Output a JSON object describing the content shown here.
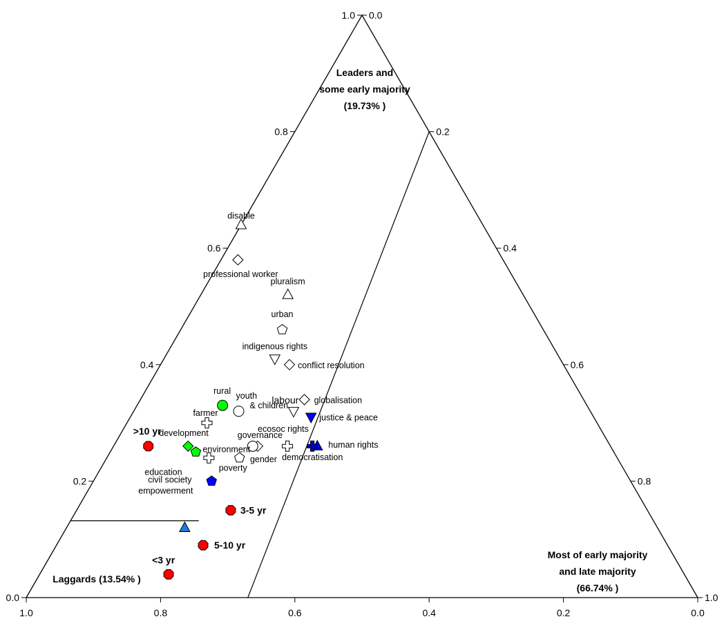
{
  "chart_data": {
    "type": "scatter",
    "subtype": "ternary",
    "grid": false,
    "axes": {
      "bottom_ticks": [
        "1.0",
        "0.8",
        "0.6",
        "0.4",
        "0.2",
        "0.0"
      ],
      "left_ticks": [
        "0.0",
        "0.2",
        "0.4",
        "0.6",
        "0.8",
        "1.0"
      ],
      "right_ticks": [
        "0.0",
        "0.2",
        "0.4",
        "0.6",
        "0.8",
        "1.0"
      ]
    },
    "regions": [
      {
        "name": "leaders",
        "lines": [
          "Leaders and",
          "some early majority",
          "(19.73% )"
        ]
      },
      {
        "name": "laggards",
        "lines": [
          "Laggards (13.54% )"
        ]
      },
      {
        "name": "majority",
        "lines": [
          "Most of early majority",
          "and late majority",
          "(66.74% )"
        ]
      }
    ],
    "points": [
      {
        "label": "disable",
        "a": 0.64,
        "b": 0.0,
        "marker": "triangle-up",
        "color": "#ffffff"
      },
      {
        "label": "professional worker",
        "a": 0.58,
        "b": 0.06,
        "marker": "diamond",
        "color": "#ffffff"
      },
      {
        "label": "pluralism",
        "a": 0.52,
        "b": 0.27,
        "marker": "triangle-up",
        "color": "#ffffff"
      },
      {
        "label": "urban",
        "a": 0.46,
        "b": 0.28,
        "marker": "pentagon",
        "color": "#ffffff"
      },
      {
        "label": "indigenous rights",
        "a": 0.41,
        "b": 0.28,
        "marker": "triangle-down",
        "color": "#ffffff"
      },
      {
        "label": "conflict resolution",
        "a": 0.4,
        "b": 0.32,
        "marker": "diamond",
        "color": "#ffffff"
      },
      {
        "label": "labour",
        "a": 0.32,
        "b": 0.35,
        "marker": "triangle-down",
        "color": "#ffffff"
      },
      {
        "label": "globalisation",
        "a": 0.34,
        "b": 0.37,
        "marker": "diamond",
        "color": "#ffffff"
      },
      {
        "label": "justice & peace",
        "a": 0.31,
        "b": 0.39,
        "marker": "triangle-down",
        "color": "#0000ff"
      },
      {
        "label": "human rights",
        "a": 0.26,
        "b": 0.41,
        "marker": "triangle-up",
        "color": "#0000ff"
      },
      {
        "label": "democratisation",
        "a": 0.26,
        "b": 0.4,
        "marker": "cross",
        "color": "#0000c0"
      },
      {
        "label": "ecosoc rights",
        "a": 0.26,
        "b": 0.35,
        "marker": "cross",
        "color": "#ffffff"
      },
      {
        "label": "gender",
        "a": 0.26,
        "b": 0.29,
        "marker": "diamond",
        "color": "#ffffff"
      },
      {
        "label": "governance",
        "a": 0.26,
        "b": 0.28,
        "marker": "circle",
        "color": "#ffffff"
      },
      {
        "label": "poverty",
        "a": 0.24,
        "b": 0.26,
        "marker": "pentagon",
        "color": "#ffffff"
      },
      {
        "label": "youth & children",
        "a": 0.32,
        "b": 0.23,
        "marker": "circle",
        "color": "#ffffff"
      },
      {
        "label": "rural",
        "a": 0.33,
        "b": 0.19,
        "marker": "circle",
        "color": "#00ff00"
      },
      {
        "label": "farmer",
        "a": 0.3,
        "b": 0.17,
        "marker": "cross",
        "color": "#ffffff"
      },
      {
        "label": "development",
        "a": 0.26,
        "b": 0.15,
        "marker": "diamond",
        "color": "#00ff00"
      },
      {
        "label": "environment",
        "a": 0.25,
        "b": 0.17,
        "marker": "pentagon",
        "color": "#00ff00"
      },
      {
        "label": "education",
        "a": 0.24,
        "b": 0.2,
        "marker": "cross",
        "color": "#ffffff"
      },
      {
        "label": "civil society empowerment",
        "a": 0.2,
        "b": 0.22,
        "marker": "pentagon",
        "color": "#0000ff"
      },
      {
        "label": ">10 yr",
        "a": 0.26,
        "b": 0.07,
        "marker": "octagon",
        "color": "#ff0000"
      },
      {
        "label": "3-5 yr",
        "a": 0.15,
        "b": 0.27,
        "marker": "octagon",
        "color": "#ff0000"
      },
      {
        "label": "5-10 yr",
        "a": 0.09,
        "b": 0.24,
        "marker": "octagon",
        "color": "#ff0000"
      },
      {
        "label": "<3 yr",
        "a": 0.04,
        "b": 0.2,
        "marker": "octagon",
        "color": "#ff0000"
      },
      {
        "label": "",
        "a": 0.12,
        "b": 0.2,
        "marker": "triangle-up",
        "color": "#1f7be0"
      }
    ]
  }
}
